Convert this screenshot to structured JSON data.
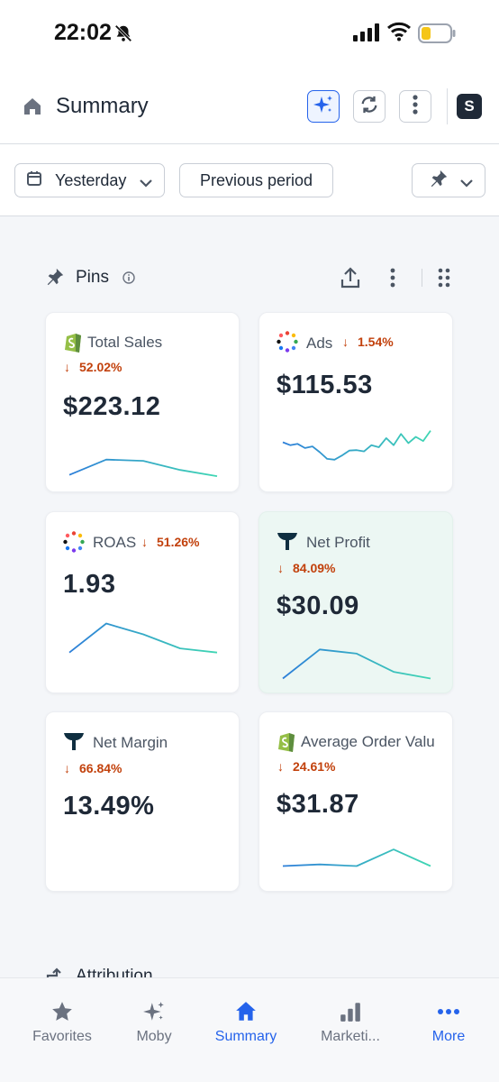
{
  "status_bar": {
    "time": "22:02"
  },
  "header": {
    "title": "Summary",
    "shop_initial": "S"
  },
  "filters": {
    "date_label": "Yesterday",
    "compare_label": "Previous period"
  },
  "pins": {
    "title": "Pins"
  },
  "cards": [
    {
      "label": "Total Sales",
      "change": "52.02%",
      "direction": "down",
      "value": "$223.12",
      "icon": "shopify-icon",
      "trend": [
        0.18,
        0.55,
        0.52,
        0.3,
        0.15
      ]
    },
    {
      "label": "Ads",
      "change": "1.54%",
      "direction": "down",
      "value": "$115.53",
      "icon": "ads-icon",
      "trend": [
        0.62,
        0.55,
        0.58,
        0.48,
        0.52,
        0.38,
        0.22,
        0.2,
        0.3,
        0.42,
        0.43,
        0.4,
        0.55,
        0.5,
        0.72,
        0.55,
        0.82,
        0.6,
        0.75,
        0.65,
        0.9
      ]
    },
    {
      "label": "ROAS",
      "change": "51.26%",
      "direction": "down",
      "value": "1.93",
      "icon": "ads-icon",
      "trend": [
        0.18,
        0.88,
        0.62,
        0.28,
        0.18
      ]
    },
    {
      "label": "Net Profit",
      "change": "84.09%",
      "direction": "down",
      "value": "$30.09",
      "icon": "triple-whale-icon",
      "trend": [
        0.12,
        0.82,
        0.72,
        0.28,
        0.12
      ]
    },
    {
      "label": "Net Margin",
      "change": "66.84%",
      "direction": "down",
      "value": "13.49%",
      "icon": "triple-whale-icon",
      "trend": []
    },
    {
      "label": "Average Order Valu",
      "change": "24.61%",
      "direction": "down",
      "value": "$31.87",
      "icon": "shopify-icon",
      "trend": [
        0.38,
        0.42,
        0.38,
        0.78,
        0.38
      ]
    }
  ],
  "attribution": {
    "label": "Attribution"
  },
  "tabs": [
    {
      "label": "Favorites",
      "icon": "star-icon",
      "active": false
    },
    {
      "label": "Moby",
      "icon": "sparkle-icon",
      "active": false
    },
    {
      "label": "Summary",
      "icon": "home-icon",
      "active": true
    },
    {
      "label": "Marketi...",
      "icon": "bar-chart-icon",
      "active": false
    },
    {
      "label": "More",
      "icon": "more-dots-icon",
      "active": false
    }
  ],
  "colors": {
    "accent": "#2563eb",
    "negative": "#c2410c",
    "spark_start": "#2d7fd9",
    "spark_end": "#3fd6b3"
  }
}
